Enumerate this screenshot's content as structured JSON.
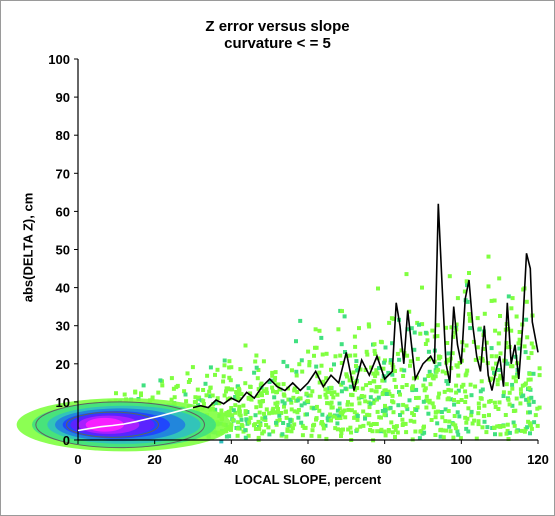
{
  "chart_data": {
    "type": "heatmap",
    "title": "Z error versus slope",
    "subtitle": "curvature < = 5",
    "xlabel": "LOCAL SLOPE, percent",
    "ylabel": "abs(DELTA Z), cm",
    "xlim": [
      0,
      120
    ],
    "ylim": [
      0,
      100
    ],
    "xticks": [
      "0",
      "20",
      "40",
      "60",
      "80",
      "100",
      "120"
    ],
    "yticks": [
      "0",
      "10",
      "20",
      "30",
      "40",
      "50",
      "60",
      "70",
      "80",
      "90",
      "100"
    ],
    "grid": false,
    "density_colors": [
      "#80ff40",
      "#40e080",
      "#30c0c0",
      "#2080e0",
      "#2040ff",
      "#6020ff",
      "#b020ff",
      "#ff20ff"
    ],
    "line_color": "#000000",
    "series": [
      {
        "values": [
          [
            0,
            2.5
          ],
          [
            3,
            3
          ],
          [
            6,
            3.5
          ],
          [
            9,
            3.8
          ],
          [
            12,
            4.2
          ],
          [
            15,
            4.8
          ],
          [
            18,
            5.5
          ],
          [
            21,
            6.2
          ],
          [
            24,
            7
          ],
          [
            27,
            7.8
          ],
          [
            30,
            8.5
          ],
          [
            32,
            9
          ],
          [
            34,
            8.5
          ],
          [
            36,
            10.5
          ],
          [
            38,
            9.5
          ],
          [
            40,
            11
          ],
          [
            42,
            10
          ],
          [
            44,
            12.5
          ],
          [
            46,
            11
          ],
          [
            48,
            14
          ],
          [
            50,
            16
          ],
          [
            52,
            14
          ],
          [
            54,
            13
          ],
          [
            56,
            15
          ],
          [
            58,
            13
          ],
          [
            60,
            15
          ],
          [
            62,
            18
          ],
          [
            64,
            14
          ],
          [
            66,
            17
          ],
          [
            68,
            15
          ],
          [
            70,
            23
          ],
          [
            72,
            13
          ],
          [
            74,
            21
          ],
          [
            76,
            17
          ],
          [
            78,
            22
          ],
          [
            80,
            16
          ],
          [
            82,
            18
          ],
          [
            83,
            36
          ],
          [
            84,
            30
          ],
          [
            85,
            20
          ],
          [
            86,
            34
          ],
          [
            87,
            25
          ],
          [
            88,
            16
          ],
          [
            90,
            20
          ],
          [
            92,
            22
          ],
          [
            93,
            20
          ],
          [
            94,
            62
          ],
          [
            95,
            40
          ],
          [
            96,
            20
          ],
          [
            97,
            15
          ],
          [
            98,
            35
          ],
          [
            99,
            25
          ],
          [
            100,
            20
          ],
          [
            101,
            37
          ],
          [
            102,
            42
          ],
          [
            103,
            30
          ],
          [
            104,
            22
          ],
          [
            105,
            18
          ],
          [
            106,
            30
          ],
          [
            107,
            17
          ],
          [
            108,
            13
          ],
          [
            109,
            18
          ],
          [
            110,
            22
          ],
          [
            111,
            14
          ],
          [
            112,
            36
          ],
          [
            113,
            20
          ],
          [
            114,
            25
          ],
          [
            115,
            16
          ],
          [
            116,
            30
          ],
          [
            117,
            49
          ],
          [
            118,
            45
          ],
          [
            118.5,
            31
          ],
          [
            120,
            23
          ]
        ]
      }
    ]
  }
}
